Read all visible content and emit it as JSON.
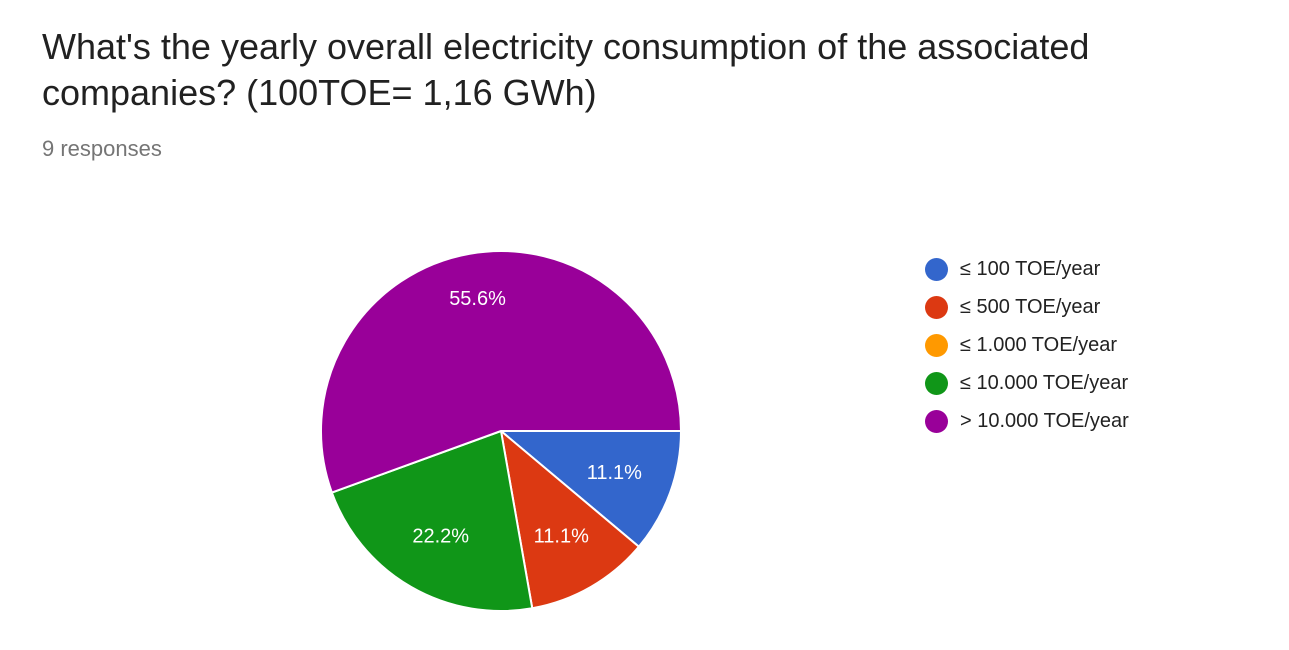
{
  "title": "What's the yearly overall electricity consumption of the associated companies? (100TOE= 1,16 GWh)",
  "responses": "9 responses",
  "chart_data": {
    "type": "pie",
    "title": "What's the yearly overall electricity consumption of the associated companies? (100TOE= 1,16 GWh)",
    "categories": [
      "≤ 100 TOE/year",
      "≤ 500 TOE/year",
      "≤ 1.000 TOE/year",
      "≤ 10.000 TOE/year",
      "> 10.000 TOE/year"
    ],
    "values": [
      1,
      1,
      0,
      2,
      5
    ],
    "percent_labels": [
      "11.1%",
      "11.1%",
      "",
      "22.2%",
      "55.6%"
    ],
    "colors": [
      "#3366cc",
      "#dc3912",
      "#ff9900",
      "#109618",
      "#990099"
    ],
    "legend_position": "right"
  }
}
